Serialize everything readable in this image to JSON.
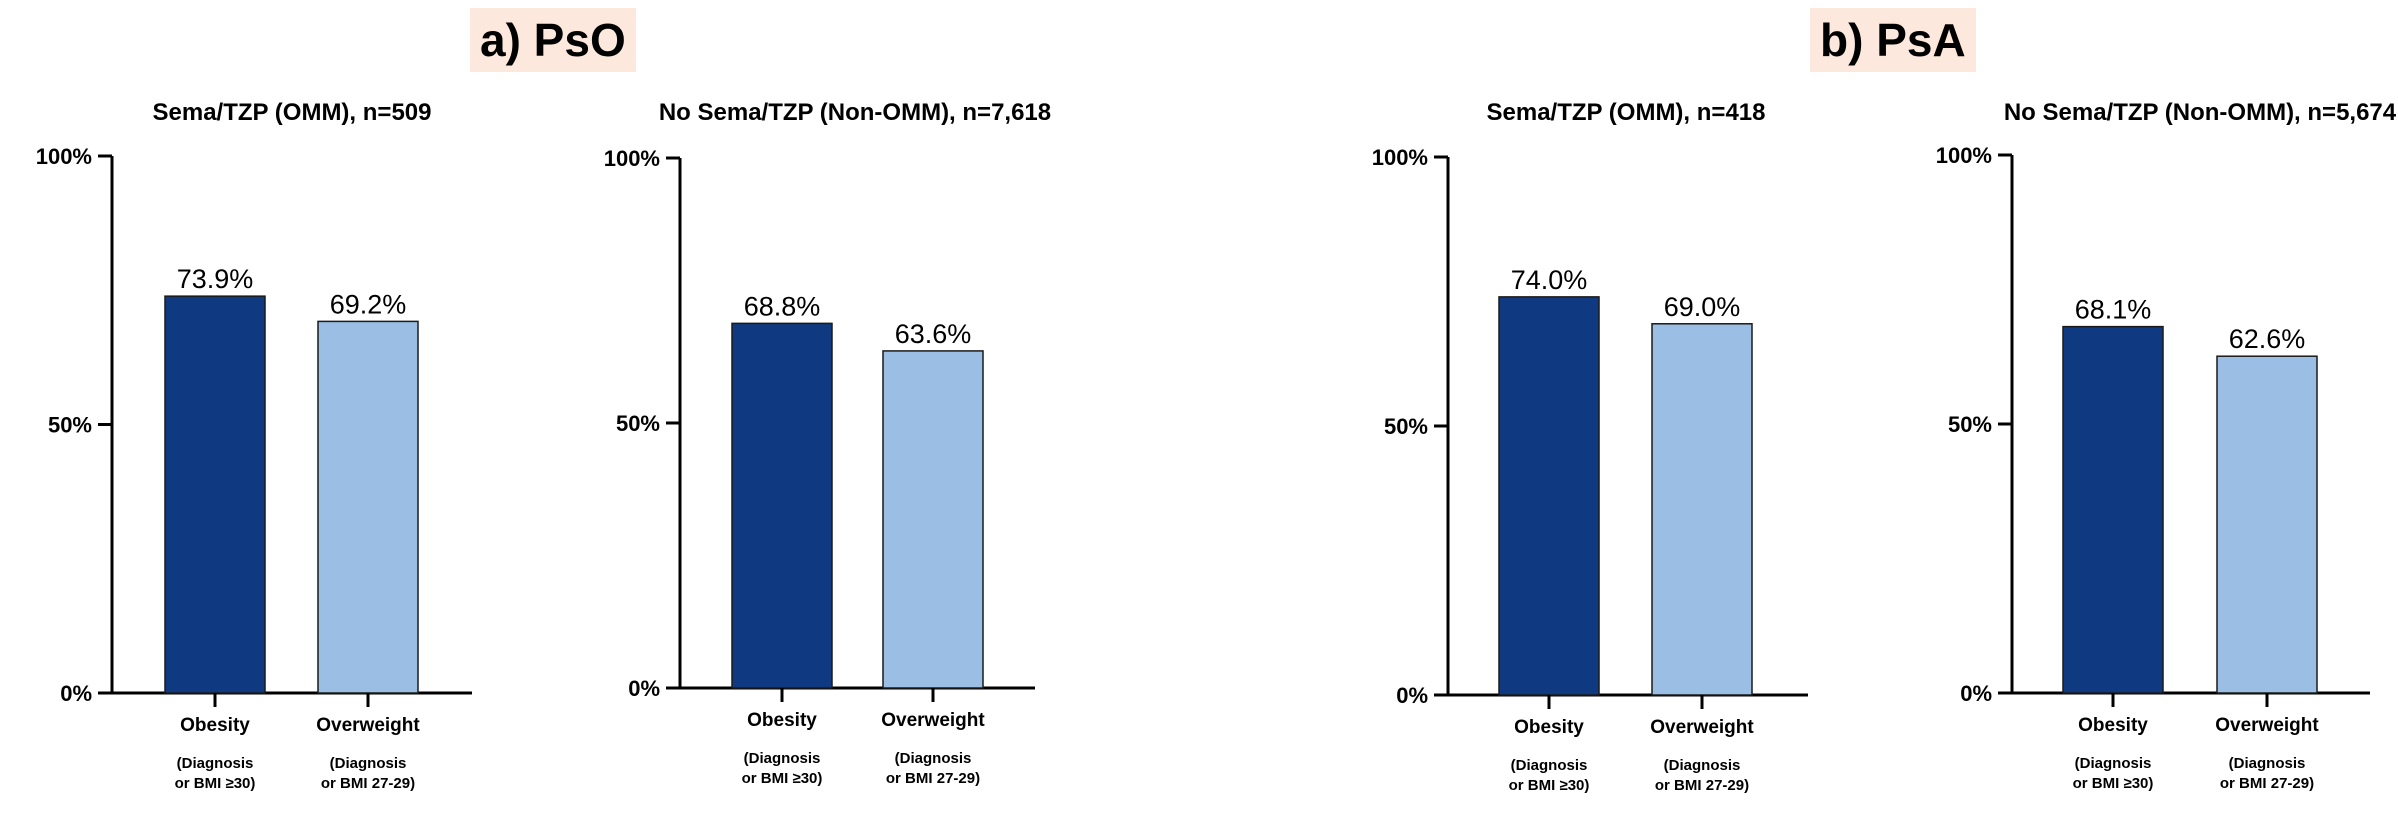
{
  "panels": [
    {
      "label": "a) PsO"
    },
    {
      "label": "b) PsA"
    }
  ],
  "colors": {
    "obesity": "#0f3a82",
    "overweight": "#9bbfe4",
    "panel_label_bg": "#fce8dc"
  },
  "chart_data": [
    {
      "type": "bar",
      "title": "Sema/TZP (OMM), n=509",
      "categories": [
        "Obesity",
        "Overweight"
      ],
      "category_notes": [
        [
          "(Diagnosis",
          "or BMI ≥30)"
        ],
        [
          "(Diagnosis",
          "or BMI 27-29)"
        ]
      ],
      "values": [
        73.9,
        69.2
      ],
      "data_labels": [
        "73.9%",
        "69.2%"
      ],
      "yticks": [
        "0%",
        "50%",
        "100%"
      ],
      "ylim": [
        0,
        100
      ]
    },
    {
      "type": "bar",
      "title": "No Sema/TZP (Non-OMM), n=7,618",
      "categories": [
        "Obesity",
        "Overweight"
      ],
      "category_notes": [
        [
          "(Diagnosis",
          "or BMI ≥30)"
        ],
        [
          "(Diagnosis",
          "or BMI 27-29)"
        ]
      ],
      "values": [
        68.8,
        63.6
      ],
      "data_labels": [
        "68.8%",
        "63.6%"
      ],
      "yticks": [
        "0%",
        "50%",
        "100%"
      ],
      "ylim": [
        0,
        100
      ]
    },
    {
      "type": "bar",
      "title": "Sema/TZP (OMM), n=418",
      "categories": [
        "Obesity",
        "Overweight"
      ],
      "category_notes": [
        [
          "(Diagnosis",
          "or BMI ≥30)"
        ],
        [
          "(Diagnosis",
          "or BMI 27-29)"
        ]
      ],
      "values": [
        74.0,
        69.0
      ],
      "data_labels": [
        "74.0%",
        "69.0%"
      ],
      "yticks": [
        "0%",
        "50%",
        "100%"
      ],
      "ylim": [
        0,
        100
      ]
    },
    {
      "type": "bar",
      "title": "No Sema/TZP (Non-OMM), n=5,674",
      "categories": [
        "Obesity",
        "Overweight"
      ],
      "category_notes": [
        [
          "(Diagnosis",
          "or BMI ≥30)"
        ],
        [
          "(Diagnosis",
          "or BMI 27-29)"
        ]
      ],
      "values": [
        68.1,
        62.6
      ],
      "data_labels": [
        "68.1%",
        "62.6%"
      ],
      "yticks": [
        "0%",
        "50%",
        "100%"
      ],
      "ylim": [
        0,
        100
      ]
    }
  ]
}
